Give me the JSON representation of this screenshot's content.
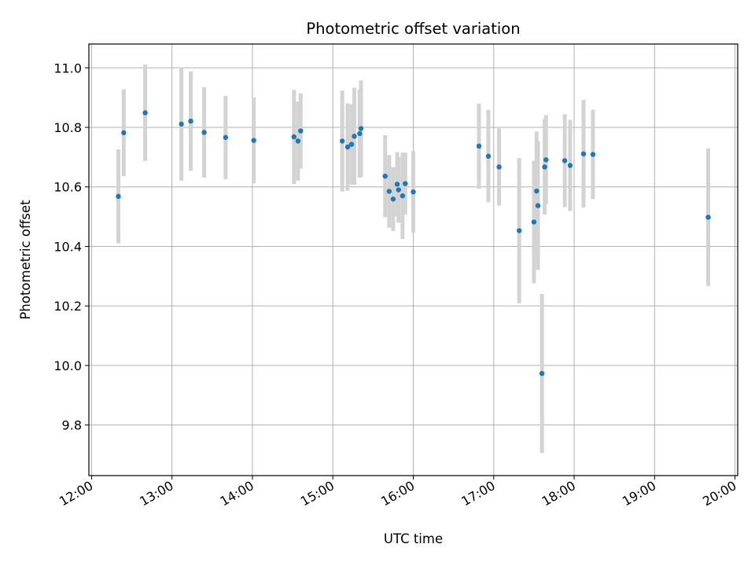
{
  "chart_data": {
    "type": "scatter",
    "title": "Photometric offset variation",
    "xlabel": "UTC time",
    "ylabel": "Photometric offset",
    "xlim": [
      "11:58",
      "20:02"
    ],
    "ylim": [
      9.63,
      11.08
    ],
    "xticks": [
      "12:00",
      "13:00",
      "14:00",
      "15:00",
      "16:00",
      "17:00",
      "18:00",
      "19:00",
      "20:00"
    ],
    "yticks": [
      "9.8",
      "10.0",
      "10.2",
      "10.4",
      "10.6",
      "10.8",
      "11.0"
    ],
    "grid": true,
    "colors": {
      "point": "#1f77b4",
      "errorbar": "#d3d3d3",
      "grid": "#b0b0b0"
    },
    "points": [
      {
        "x": "12:20",
        "y": 10.568,
        "err": 0.158
      },
      {
        "x": "12:24",
        "y": 10.782,
        "err": 0.146
      },
      {
        "x": "12:40",
        "y": 10.849,
        "err": 0.162
      },
      {
        "x": "13:07",
        "y": 10.811,
        "err": 0.19
      },
      {
        "x": "13:14",
        "y": 10.821,
        "err": 0.167
      },
      {
        "x": "13:24",
        "y": 10.783,
        "err": 0.152
      },
      {
        "x": "13:40",
        "y": 10.766,
        "err": 0.14
      },
      {
        "x": "14:01",
        "y": 10.756,
        "err": 0.144
      },
      {
        "x": "14:31",
        "y": 10.768,
        "err": 0.158
      },
      {
        "x": "14:34",
        "y": 10.754,
        "err": 0.133
      },
      {
        "x": "14:36",
        "y": 10.788,
        "err": 0.126
      },
      {
        "x": "15:07",
        "y": 10.754,
        "err": 0.17
      },
      {
        "x": "15:11",
        "y": 10.734,
        "err": 0.147
      },
      {
        "x": "15:14",
        "y": 10.743,
        "err": 0.135
      },
      {
        "x": "15:16",
        "y": 10.77,
        "err": 0.163
      },
      {
        "x": "15:20",
        "y": 10.779,
        "err": 0.148
      },
      {
        "x": "15:21",
        "y": 10.796,
        "err": 0.162
      },
      {
        "x": "15:39",
        "y": 10.636,
        "err": 0.138
      },
      {
        "x": "15:42",
        "y": 10.585,
        "err": 0.122
      },
      {
        "x": "15:45",
        "y": 10.559,
        "err": 0.107
      },
      {
        "x": "15:48",
        "y": 10.609,
        "err": 0.108
      },
      {
        "x": "15:49",
        "y": 10.59,
        "err": 0.11
      },
      {
        "x": "15:52",
        "y": 10.57,
        "err": 0.145
      },
      {
        "x": "15:54",
        "y": 10.611,
        "err": 0.104
      },
      {
        "x": "16:00",
        "y": 10.583,
        "err": 0.137
      },
      {
        "x": "16:49",
        "y": 10.737,
        "err": 0.143
      },
      {
        "x": "16:56",
        "y": 10.703,
        "err": 0.155
      },
      {
        "x": "17:04",
        "y": 10.667,
        "err": 0.13
      },
      {
        "x": "17:19",
        "y": 10.453,
        "err": 0.244
      },
      {
        "x": "17:30",
        "y": 10.482,
        "err": 0.206
      },
      {
        "x": "17:32",
        "y": 10.586,
        "err": 0.2
      },
      {
        "x": "17:33",
        "y": 10.537,
        "err": 0.216
      },
      {
        "x": "17:36",
        "y": 9.973,
        "err": 0.267
      },
      {
        "x": "17:38",
        "y": 10.667,
        "err": 0.16
      },
      {
        "x": "17:39",
        "y": 10.691,
        "err": 0.15
      },
      {
        "x": "17:53",
        "y": 10.688,
        "err": 0.156
      },
      {
        "x": "17:57",
        "y": 10.672,
        "err": 0.153
      },
      {
        "x": "18:07",
        "y": 10.711,
        "err": 0.181
      },
      {
        "x": "18:14",
        "y": 10.709,
        "err": 0.15
      },
      {
        "x": "19:40",
        "y": 10.498,
        "err": 0.231
      }
    ]
  }
}
